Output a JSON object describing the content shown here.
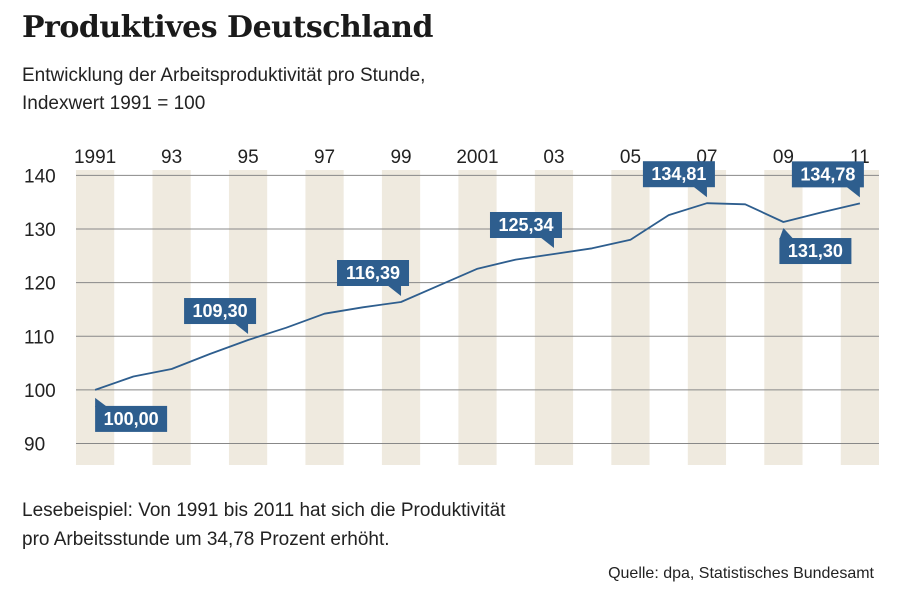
{
  "title": "Produktives Deutschland",
  "subtitle_lines": [
    "Entwicklung der Arbeitsproduktivität pro Stunde,",
    "Indexwert 1991 = 100"
  ],
  "note_lines": [
    "Lesebeispiel: Von 1991 bis 2011 hat sich die Produktivität",
    "pro Arbeitsstunde um 34,78 Prozent erhöht."
  ],
  "source": "Quelle: dpa, Statistisches Bundesamt",
  "colors": {
    "line": "#2e5e8e",
    "label_bg": "#2e5e8e",
    "label_text": "#ffffff",
    "band": "#efeadf",
    "grid": "#888888"
  },
  "chart_data": {
    "type": "line",
    "x": [
      1991,
      1992,
      1993,
      1994,
      1995,
      1996,
      1997,
      1998,
      1999,
      2000,
      2001,
      2002,
      2003,
      2004,
      2005,
      2006,
      2007,
      2008,
      2009,
      2010,
      2011
    ],
    "series": [
      {
        "values": [
          100.0,
          102.5,
          103.9,
          106.7,
          109.3,
          111.6,
          114.2,
          115.4,
          116.39,
          119.5,
          122.6,
          124.3,
          125.34,
          126.4,
          128.0,
          132.6,
          134.81,
          134.6,
          131.3,
          133.1,
          134.78
        ]
      }
    ],
    "x_tick_labels": [
      {
        "x": 1991,
        "label": "1991"
      },
      {
        "x": 1993,
        "label": "93"
      },
      {
        "x": 1995,
        "label": "95"
      },
      {
        "x": 1997,
        "label": "97"
      },
      {
        "x": 1999,
        "label": "99"
      },
      {
        "x": 2001,
        "label": "2001"
      },
      {
        "x": 2003,
        "label": "03"
      },
      {
        "x": 2005,
        "label": "05"
      },
      {
        "x": 2007,
        "label": "07"
      },
      {
        "x": 2009,
        "label": "09"
      },
      {
        "x": 2011,
        "label": "11"
      }
    ],
    "y_ticks": [
      90,
      100,
      110,
      120,
      130,
      140
    ],
    "ylim": [
      86,
      141
    ],
    "xlim": [
      1990.5,
      2011.5
    ],
    "x_axis_position": "top",
    "grid": true,
    "data_labels": [
      {
        "x": 1991,
        "label": "100,00",
        "placement": "below"
      },
      {
        "x": 1995,
        "label": "109,30",
        "placement": "above"
      },
      {
        "x": 1999,
        "label": "116,39",
        "placement": "above"
      },
      {
        "x": 2003,
        "label": "125,34",
        "placement": "above"
      },
      {
        "x": 2007,
        "label": "134,81",
        "placement": "above"
      },
      {
        "x": 2009,
        "label": "131,30",
        "placement": "below"
      },
      {
        "x": 2011,
        "label": "134,78",
        "placement": "above"
      }
    ]
  }
}
